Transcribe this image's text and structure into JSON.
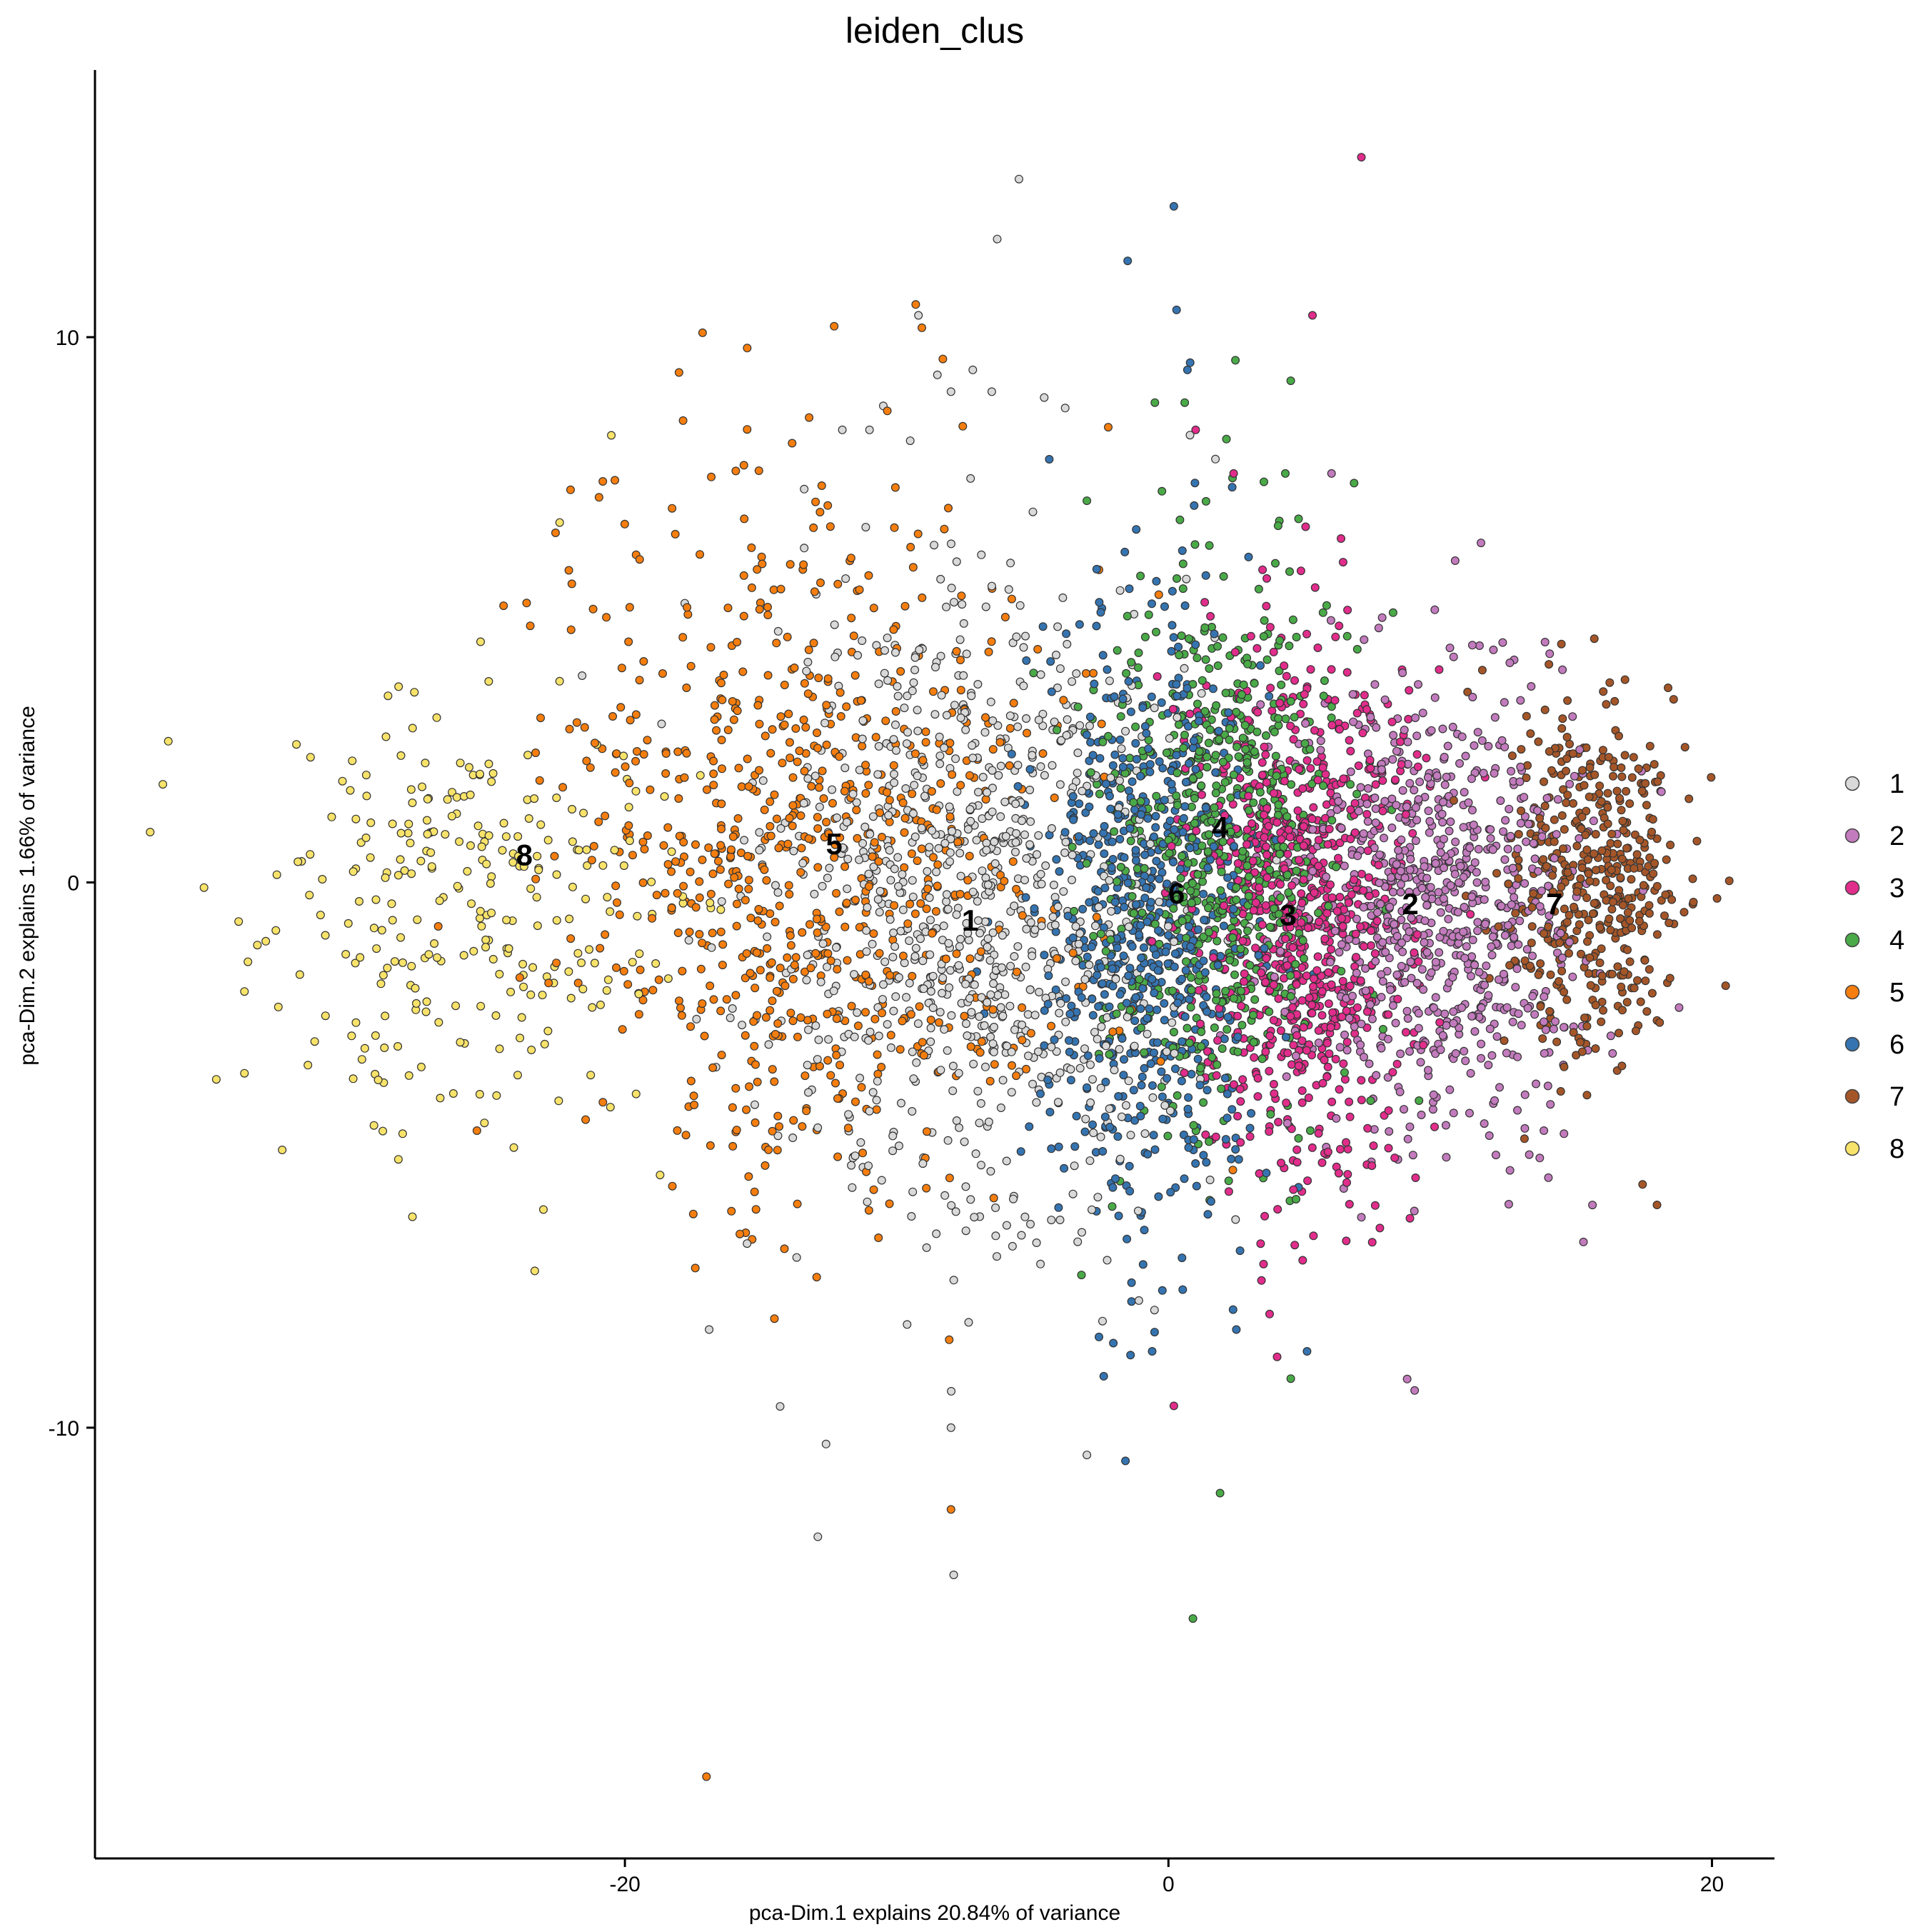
{
  "chart_data": {
    "type": "scatter",
    "title": "leiden_clus",
    "xlabel": "pca-Dim.1 explains 20.84% of variance",
    "ylabel": "pca-Dim.2 explains 1.66% of variance",
    "xlim": [
      -39.5,
      22.3
    ],
    "ylim": [
      -17.9,
      14.9
    ],
    "x_ticks": [
      -20,
      0,
      20
    ],
    "x_tick_labels": [
      "-20",
      "0",
      "20"
    ],
    "y_ticks": [
      -10,
      0,
      10
    ],
    "y_tick_labels": [
      "-10",
      "0",
      "10"
    ],
    "grid": false,
    "legend_position": "right",
    "series": [
      {
        "name": "1",
        "color": "#d9d9d9",
        "center": [
          -7.2,
          -0.6
        ],
        "spread": [
          3.6,
          3.0
        ],
        "n": 900,
        "sample_points": [
          [
            -5.5,
            12.9
          ],
          [
            -6.3,
            11.8
          ],
          [
            -9.2,
            10.4
          ],
          [
            -7.2,
            9.4
          ],
          [
            -6.5,
            9.0
          ],
          [
            -8.0,
            9.0
          ],
          [
            -3.8,
            8.7
          ],
          [
            -11.0,
            8.3
          ],
          [
            -12.0,
            8.3
          ],
          [
            -9.5,
            8.1
          ],
          [
            -12.6,
            -10.3
          ],
          [
            -8.0,
            -10.0
          ],
          [
            -12.9,
            -12.0
          ],
          [
            -7.9,
            -12.7
          ],
          [
            -3.0,
            -10.5
          ],
          [
            -16.9,
            -8.2
          ]
        ],
        "cluster_label": {
          "text": "1",
          "x": -7.3,
          "y": -0.7
        }
      },
      {
        "name": "2",
        "color": "#c27bbd",
        "center": [
          9.8,
          -0.3
        ],
        "spread": [
          2.7,
          2.2
        ],
        "n": 800,
        "sample_points": [
          [
            6.0,
            7.5
          ],
          [
            12.3,
            4.4
          ],
          [
            9.8,
            5.0
          ],
          [
            14.5,
            3.9
          ],
          [
            12.0,
            -4.0
          ],
          [
            9.0,
            -5.0
          ]
        ],
        "cluster_label": {
          "text": "2",
          "x": 8.9,
          "y": -0.4
        }
      },
      {
        "name": "3",
        "color": "#e12d8b",
        "center": [
          5.0,
          -0.5
        ],
        "spread": [
          2.0,
          2.4
        ],
        "n": 800,
        "sample_points": [
          [
            7.1,
            13.3
          ],
          [
            5.3,
            10.4
          ],
          [
            1.0,
            8.3
          ],
          [
            2.4,
            7.5
          ],
          [
            0.2,
            -9.6
          ],
          [
            4.0,
            -8.7
          ],
          [
            7.5,
            -6.6
          ],
          [
            3.5,
            -7.0
          ]
        ],
        "cluster_label": {
          "text": "3",
          "x": 4.4,
          "y": -0.6
        }
      },
      {
        "name": "4",
        "color": "#4aaa48",
        "center": [
          1.8,
          0.5
        ],
        "spread": [
          2.2,
          2.4
        ],
        "n": 700,
        "sample_points": [
          [
            4.5,
            9.2
          ],
          [
            -0.5,
            8.8
          ],
          [
            0.6,
            8.8
          ],
          [
            4.3,
            7.5
          ],
          [
            -3.0,
            7.0
          ],
          [
            0.9,
            -13.5
          ],
          [
            1.9,
            -11.2
          ],
          [
            4.5,
            -9.1
          ],
          [
            -3.2,
            -7.2
          ]
        ],
        "cluster_label": {
          "text": "4",
          "x": 1.9,
          "y": 1.0
        }
      },
      {
        "name": "5",
        "color": "#f57e0f",
        "center": [
          -13.0,
          0.6
        ],
        "spread": [
          4.5,
          3.2
        ],
        "n": 800,
        "sample_points": [
          [
            -9.3,
            10.6
          ],
          [
            -12.3,
            10.2
          ],
          [
            -15.5,
            9.8
          ],
          [
            -8.3,
            9.6
          ],
          [
            -17.0,
            -16.4
          ],
          [
            -8.0,
            -11.5
          ],
          [
            -14.5,
            -8.0
          ],
          [
            -22.0,
            7.2
          ]
        ],
        "cluster_label": {
          "text": "5",
          "x": -12.3,
          "y": 0.7
        }
      },
      {
        "name": "6",
        "color": "#3574b0",
        "center": [
          -0.8,
          -0.6
        ],
        "spread": [
          2.0,
          2.8
        ],
        "n": 700,
        "sample_points": [
          [
            0.2,
            12.4
          ],
          [
            -1.5,
            11.4
          ],
          [
            0.3,
            10.5
          ],
          [
            0.7,
            9.4
          ],
          [
            -0.6,
            -8.6
          ],
          [
            2.5,
            -8.2
          ],
          [
            5.1,
            -8.6
          ]
        ],
        "cluster_label": {
          "text": "6",
          "x": 0.3,
          "y": -0.2
        }
      },
      {
        "name": "7",
        "color": "#a55628",
        "center": [
          15.6,
          0.0
        ],
        "spread": [
          1.7,
          1.6
        ],
        "n": 450,
        "sample_points": [
          [
            14.0,
            4.0
          ],
          [
            16.0,
            3.5
          ],
          [
            19.3,
            -0.4
          ],
          [
            15.4,
            -3.9
          ],
          [
            13.1,
            -4.7
          ]
        ],
        "cluster_label": {
          "text": "7",
          "x": 14.2,
          "y": -0.4
        }
      },
      {
        "name": "8",
        "color": "#f7e36a",
        "center": [
          -26.0,
          -0.4
        ],
        "spread": [
          4.0,
          2.1
        ],
        "n": 280,
        "sample_points": [
          [
            -37.0,
            1.8
          ],
          [
            -20.5,
            8.2
          ],
          [
            -22.4,
            6.6
          ],
          [
            -34.0,
            -2.0
          ],
          [
            -34.0,
            -3.5
          ],
          [
            -30.0,
            -3.6
          ],
          [
            -23.0,
            -6.0
          ]
        ],
        "cluster_label": {
          "text": "8",
          "x": -23.7,
          "y": 0.5
        }
      }
    ]
  }
}
